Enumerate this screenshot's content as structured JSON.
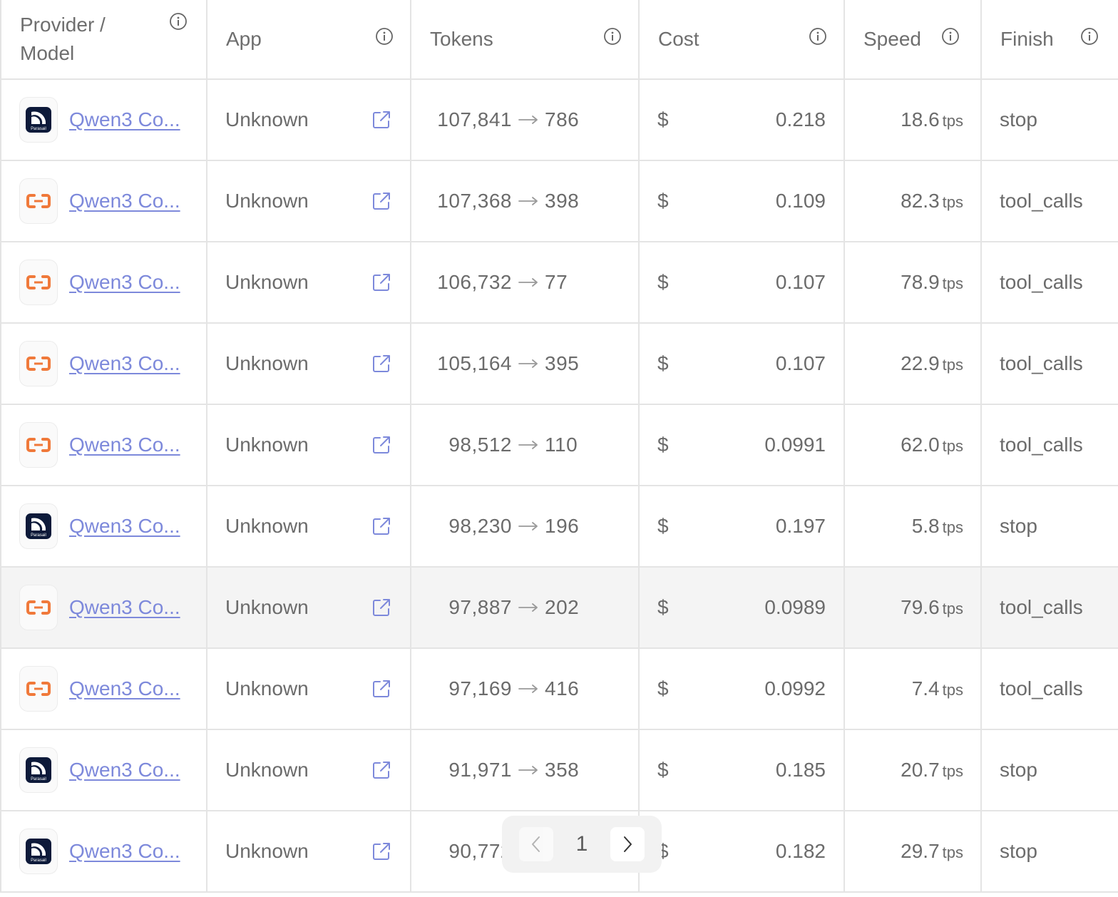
{
  "headers": {
    "provider_model": "Provider / Model",
    "app": "App",
    "tokens": "Tokens",
    "cost": "Cost",
    "speed": "Speed",
    "finish": "Finish"
  },
  "rows": [
    {
      "provider_icon": "parasail-logo",
      "provider_label": "Parasail",
      "model": "Qwen3 Co...",
      "app": "Unknown",
      "tokens_in": "107,841",
      "tokens_out": "786",
      "currency": "$",
      "cost": "0.218",
      "speed": "18.6",
      "speed_unit": "tps",
      "finish": "stop"
    },
    {
      "provider_icon": "alibaba-logo",
      "model": "Qwen3 Co...",
      "app": "Unknown",
      "tokens_in": "107,368",
      "tokens_out": "398",
      "currency": "$",
      "cost": "0.109",
      "speed": "82.3",
      "speed_unit": "tps",
      "finish": "tool_calls"
    },
    {
      "provider_icon": "alibaba-logo",
      "model": "Qwen3 Co...",
      "app": "Unknown",
      "tokens_in": "106,732",
      "tokens_out": "77",
      "currency": "$",
      "cost": "0.107",
      "speed": "78.9",
      "speed_unit": "tps",
      "finish": "tool_calls"
    },
    {
      "provider_icon": "alibaba-logo",
      "model": "Qwen3 Co...",
      "app": "Unknown",
      "tokens_in": "105,164",
      "tokens_out": "395",
      "currency": "$",
      "cost": "0.107",
      "speed": "22.9",
      "speed_unit": "tps",
      "finish": "tool_calls"
    },
    {
      "provider_icon": "alibaba-logo",
      "model": "Qwen3 Co...",
      "app": "Unknown",
      "tokens_in": "98,512",
      "tokens_out": "110",
      "currency": "$",
      "cost": "0.0991",
      "speed": "62.0",
      "speed_unit": "tps",
      "finish": "tool_calls"
    },
    {
      "provider_icon": "parasail-logo",
      "provider_label": "Parasail",
      "model": "Qwen3 Co...",
      "app": "Unknown",
      "tokens_in": "98,230",
      "tokens_out": "196",
      "currency": "$",
      "cost": "0.197",
      "speed": "5.8",
      "speed_unit": "tps",
      "finish": "stop"
    },
    {
      "provider_icon": "alibaba-logo",
      "model": "Qwen3 Co...",
      "app": "Unknown",
      "tokens_in": "97,887",
      "tokens_out": "202",
      "currency": "$",
      "cost": "0.0989",
      "speed": "79.6",
      "speed_unit": "tps",
      "finish": "tool_calls",
      "highlighted": true
    },
    {
      "provider_icon": "alibaba-logo",
      "model": "Qwen3 Co...",
      "app": "Unknown",
      "tokens_in": "97,169",
      "tokens_out": "416",
      "currency": "$",
      "cost": "0.0992",
      "speed": "7.4",
      "speed_unit": "tps",
      "finish": "tool_calls"
    },
    {
      "provider_icon": "parasail-logo",
      "provider_label": "Parasail",
      "model": "Qwen3 Co...",
      "app": "Unknown",
      "tokens_in": "91,971",
      "tokens_out": "358",
      "currency": "$",
      "cost": "0.185",
      "speed": "20.7",
      "speed_unit": "tps",
      "finish": "stop"
    },
    {
      "provider_icon": "parasail-logo",
      "provider_label": "Parasail",
      "model": "Qwen3 Co...",
      "app": "Unknown",
      "tokens_in": "90,772",
      "tokens_out": "",
      "currency": "$",
      "cost": "0.182",
      "speed": "29.7",
      "speed_unit": "tps",
      "finish": "stop"
    }
  ],
  "pagination": {
    "current_page": "1"
  },
  "colors": {
    "link": "#7d89db",
    "alibaba_orange": "#f0793a",
    "parasail_navy": "#0d1a3a",
    "border": "#e4e4e4",
    "highlight_row": "#f4f4f4"
  }
}
